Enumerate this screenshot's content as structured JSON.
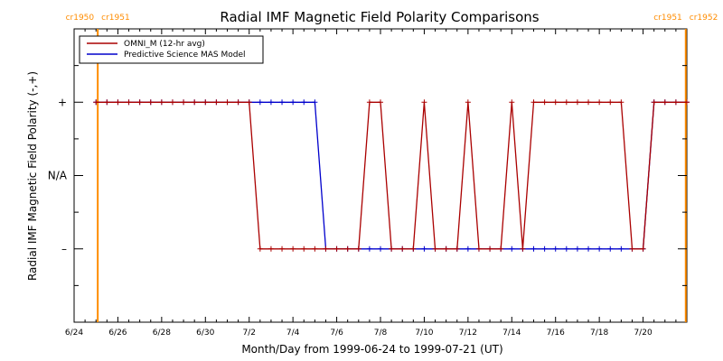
{
  "chart_data": {
    "type": "line",
    "title": "Radial IMF Magnetic Field Polarity Comparisons",
    "xlabel": "Month/Day from 1999-06-24 to 1999-07-21 (UT)",
    "ylabel": "Radial IMF Magnetic Field Polarity (-,+)",
    "xlim": [
      0,
      28
    ],
    "ylim": [
      -2,
      2
    ],
    "y_ticks": [
      {
        "value": 1,
        "label": "+"
      },
      {
        "value": 0,
        "label": "N/A"
      },
      {
        "value": -1,
        "label": "–"
      }
    ],
    "x_ticks": [
      {
        "value": 0,
        "label": "6/24"
      },
      {
        "value": 2,
        "label": "6/26"
      },
      {
        "value": 4,
        "label": "6/28"
      },
      {
        "value": 6,
        "label": "6/30"
      },
      {
        "value": 8,
        "label": "7/2"
      },
      {
        "value": 10,
        "label": "7/4"
      },
      {
        "value": 12,
        "label": "7/6"
      },
      {
        "value": 14,
        "label": "7/8"
      },
      {
        "value": 16,
        "label": "7/10"
      },
      {
        "value": 18,
        "label": "7/12"
      },
      {
        "value": 20,
        "label": "7/14"
      },
      {
        "value": 22,
        "label": "7/16"
      },
      {
        "value": 24,
        "label": "7/18"
      },
      {
        "value": 26,
        "label": "7/20"
      }
    ],
    "carrington_rotations": [
      {
        "x": 1.08,
        "labels": [
          "cr1950",
          "cr1951"
        ],
        "color": "#ff8c00"
      },
      {
        "x": 27.95,
        "labels": [
          "cr1951",
          "cr1952"
        ],
        "color": "#ff8c00"
      }
    ],
    "legend": {
      "position": "top-left"
    },
    "series": [
      {
        "name": "OMNI_M (12-hr avg)",
        "color": "#aa0000",
        "marker": "+",
        "x": [
          1.0,
          1.5,
          2.0,
          2.5,
          3.0,
          3.5,
          4.0,
          4.5,
          5.0,
          5.5,
          6.0,
          6.5,
          7.0,
          7.5,
          8.0,
          8.5,
          9.0,
          9.5,
          10.0,
          10.5,
          11.0,
          11.5,
          12.0,
          12.5,
          13.0,
          13.5,
          14.0,
          14.5,
          15.0,
          15.5,
          16.0,
          16.5,
          17.0,
          17.5,
          18.0,
          18.5,
          19.0,
          19.5,
          20.0,
          20.5,
          21.0,
          21.5,
          22.0,
          22.5,
          23.0,
          23.5,
          24.0,
          24.5,
          25.0,
          25.5,
          26.0,
          26.5,
          27.0,
          27.5,
          28.0
        ],
        "y": [
          1,
          1,
          1,
          1,
          1,
          1,
          1,
          1,
          1,
          1,
          1,
          1,
          1,
          1,
          1,
          -1,
          -1,
          -1,
          -1,
          -1,
          -1,
          -1,
          -1,
          -1,
          -1,
          1,
          1,
          -1,
          -1,
          -1,
          1,
          -1,
          -1,
          -1,
          1,
          -1,
          -1,
          -1,
          1,
          -1,
          1,
          1,
          1,
          1,
          1,
          1,
          1,
          1,
          1,
          -1,
          -1,
          1,
          1,
          1,
          1
        ]
      },
      {
        "name": "Predictive Science MAS Model",
        "color": "#0000cc",
        "marker": "+",
        "x": [
          1.0,
          1.5,
          2.0,
          2.5,
          3.0,
          3.5,
          4.0,
          4.5,
          5.0,
          5.5,
          6.0,
          6.5,
          7.0,
          7.5,
          8.0,
          8.5,
          9.0,
          9.5,
          10.0,
          10.5,
          11.0,
          11.5,
          12.0,
          12.5,
          13.0,
          13.5,
          14.0,
          14.5,
          15.0,
          15.5,
          16.0,
          16.5,
          17.0,
          17.5,
          18.0,
          18.5,
          19.0,
          19.5,
          20.0,
          20.5,
          21.0,
          21.5,
          22.0,
          22.5,
          23.0,
          23.5,
          24.0,
          24.5,
          25.0,
          25.5,
          26.0,
          26.5,
          27.0,
          27.5,
          28.0
        ],
        "y": [
          1,
          1,
          1,
          1,
          1,
          1,
          1,
          1,
          1,
          1,
          1,
          1,
          1,
          1,
          1,
          1,
          1,
          1,
          1,
          1,
          1,
          -1,
          -1,
          -1,
          -1,
          -1,
          -1,
          -1,
          -1,
          -1,
          -1,
          -1,
          -1,
          -1,
          -1,
          -1,
          -1,
          -1,
          -1,
          -1,
          -1,
          -1,
          -1,
          -1,
          -1,
          -1,
          -1,
          -1,
          -1,
          -1,
          -1,
          1,
          1,
          1,
          1
        ]
      }
    ]
  }
}
